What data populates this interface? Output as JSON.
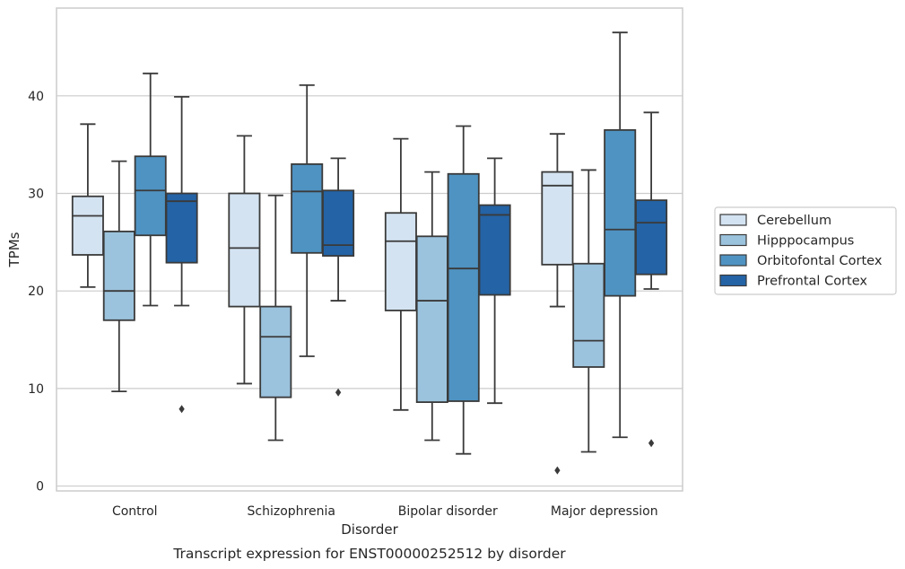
{
  "chart_data": {
    "type": "box",
    "caption": "Transcript expression for ENST00000252512 by disorder",
    "xlabel": "Disorder",
    "ylabel": "TPMs",
    "ylim": [
      -0.5,
      49
    ],
    "yticks": [
      0,
      10,
      20,
      30,
      40
    ],
    "grid": "horizontal",
    "legend_position": "right",
    "categories": [
      "Control",
      "Schizophrenia",
      "Bipolar disorder",
      "Major depression"
    ],
    "series": [
      {
        "name": "Cerebellum",
        "color": "#d4e3f1",
        "boxes": [
          {
            "whislo": 20.4,
            "q1": 23.7,
            "med": 27.7,
            "q3": 29.7,
            "whishi": 37.1,
            "fliers": []
          },
          {
            "whislo": 10.5,
            "q1": 18.4,
            "med": 24.4,
            "q3": 30.0,
            "whishi": 35.9,
            "fliers": []
          },
          {
            "whislo": 7.8,
            "q1": 18.0,
            "med": 25.1,
            "q3": 28.0,
            "whishi": 35.6,
            "fliers": []
          },
          {
            "whislo": 18.4,
            "q1": 22.7,
            "med": 30.8,
            "q3": 32.2,
            "whishi": 36.1,
            "fliers": [
              1.6
            ]
          }
        ]
      },
      {
        "name": "Hipppocampus",
        "color": "#9bc3dd",
        "boxes": [
          {
            "whislo": 9.7,
            "q1": 17.0,
            "med": 20.0,
            "q3": 26.1,
            "whishi": 33.3,
            "fliers": []
          },
          {
            "whislo": 4.7,
            "q1": 9.1,
            "med": 15.3,
            "q3": 18.4,
            "whishi": 29.8,
            "fliers": []
          },
          {
            "whislo": 4.7,
            "q1": 8.6,
            "med": 19.0,
            "q3": 25.6,
            "whishi": 32.2,
            "fliers": []
          },
          {
            "whislo": 3.5,
            "q1": 12.2,
            "med": 14.9,
            "q3": 22.8,
            "whishi": 32.4,
            "fliers": []
          }
        ]
      },
      {
        "name": "Orbitofontal Cortex",
        "color": "#4f93c2",
        "boxes": [
          {
            "whislo": 18.5,
            "q1": 25.7,
            "med": 30.3,
            "q3": 33.8,
            "whishi": 42.3,
            "fliers": []
          },
          {
            "whislo": 13.3,
            "q1": 23.9,
            "med": 30.2,
            "q3": 33.0,
            "whishi": 41.1,
            "fliers": []
          },
          {
            "whislo": 3.3,
            "q1": 8.7,
            "med": 22.3,
            "q3": 32.0,
            "whishi": 36.9,
            "fliers": []
          },
          {
            "whislo": 5.0,
            "q1": 19.5,
            "med": 26.3,
            "q3": 36.5,
            "whishi": 46.5,
            "fliers": []
          }
        ]
      },
      {
        "name": "Prefrontal Cortex",
        "color": "#2463a5",
        "boxes": [
          {
            "whislo": 18.5,
            "q1": 22.9,
            "med": 29.2,
            "q3": 30.0,
            "whishi": 39.9,
            "fliers": [
              7.9
            ]
          },
          {
            "whislo": 19.0,
            "q1": 23.6,
            "med": 24.7,
            "q3": 30.3,
            "whishi": 33.6,
            "fliers": [
              9.6
            ]
          },
          {
            "whislo": 8.5,
            "q1": 19.6,
            "med": 27.8,
            "q3": 28.8,
            "whishi": 33.6,
            "fliers": []
          },
          {
            "whislo": 20.2,
            "q1": 21.7,
            "med": 27.0,
            "q3": 29.3,
            "whishi": 38.3,
            "fliers": [
              4.4
            ]
          }
        ]
      }
    ]
  }
}
